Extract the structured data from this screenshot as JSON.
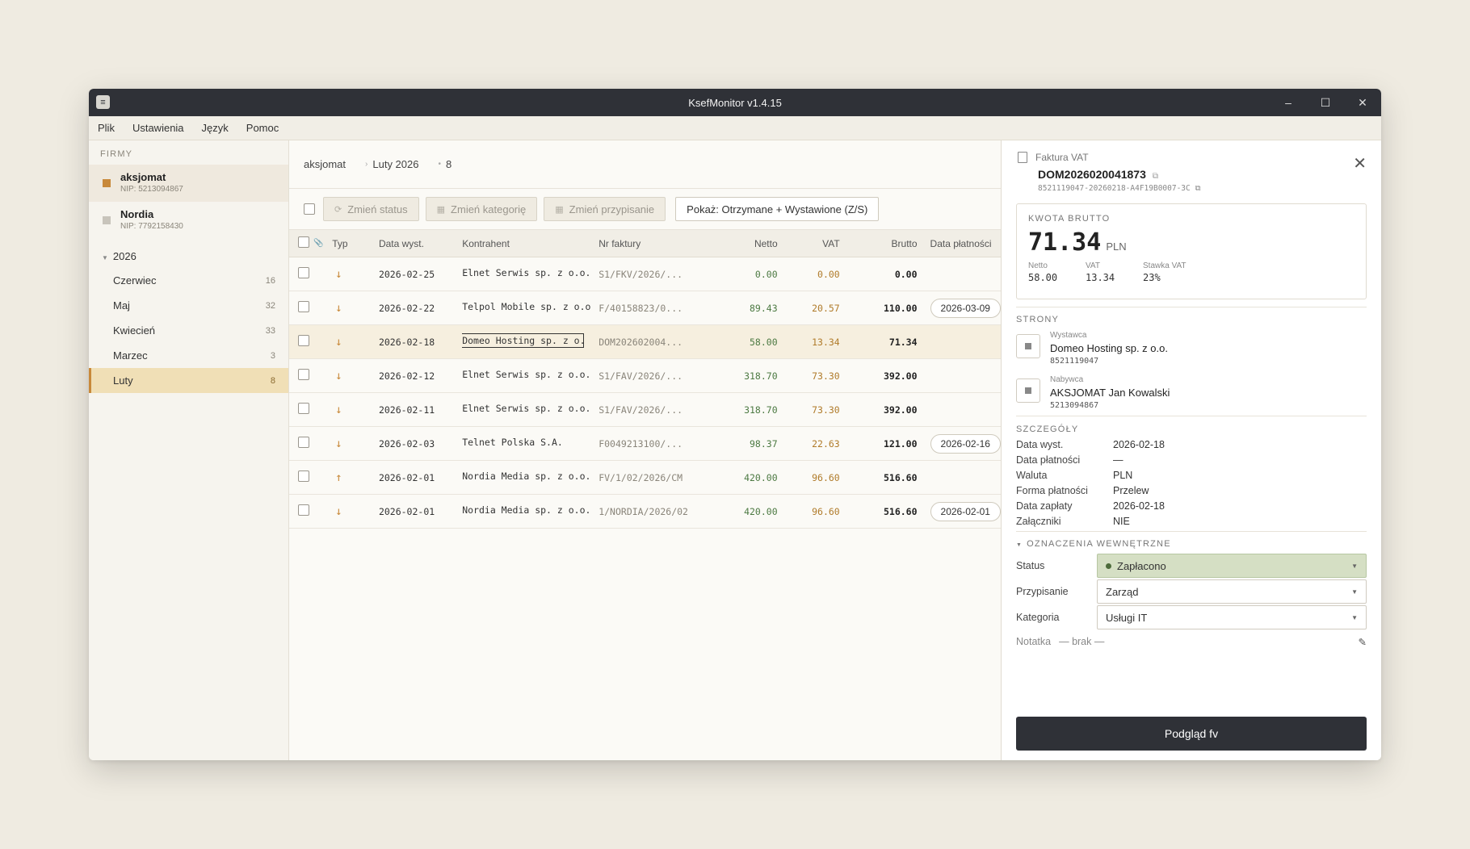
{
  "window": {
    "title": "KsefMonitor  v1.4.15"
  },
  "menu": [
    "Plik",
    "Ustawienia",
    "Język",
    "Pomoc"
  ],
  "sidebar": {
    "section_title": "FIRMY",
    "firms": [
      {
        "name": "aksjomat",
        "nip": "NIP: 5213094867"
      },
      {
        "name": "Nordia",
        "nip": "NIP: 7792158430"
      }
    ],
    "year": "2026",
    "months": [
      {
        "label": "Czerwiec",
        "count": "16"
      },
      {
        "label": "Maj",
        "count": "32"
      },
      {
        "label": "Kwiecień",
        "count": "33"
      },
      {
        "label": "Marzec",
        "count": "3"
      },
      {
        "label": "Luty",
        "count": "8"
      }
    ]
  },
  "breadcrumb": {
    "company": "aksjomat",
    "period": "Luty 2026",
    "count": "8"
  },
  "toolbar": {
    "change_status": "Zmień status",
    "change_category": "Zmień kategorię",
    "change_assignment": "Zmień przypisanie",
    "filter": "Pokaż: Otrzymane + Wystawione (Z/S)"
  },
  "table": {
    "headers": {
      "attach": "📎",
      "typ": "Typ",
      "date": "Data wyst.",
      "contractor": "Kontrahent",
      "invoice": "Nr faktury",
      "net": "Netto",
      "vat": "VAT",
      "gross": "Brutto",
      "paydate": "Data płatności"
    },
    "rows": [
      {
        "typ": "↓",
        "date": "2026-02-25",
        "contractor": "Elnet Serwis sp. z o.o.",
        "invoice": "S1/FKV/2026/...",
        "net": "0.00",
        "vat": "0.00",
        "gross": "0.00",
        "paydate": ""
      },
      {
        "typ": "↓",
        "date": "2026-02-22",
        "contractor": "Telpol Mobile sp. z o.o.",
        "invoice": "F/40158823/0...",
        "net": "89.43",
        "vat": "20.57",
        "gross": "110.00",
        "paydate": "2026-03-09"
      },
      {
        "typ": "↓",
        "date": "2026-02-18",
        "contractor": "Domeo Hosting sp. z o.o.",
        "invoice": "DOM202602004...",
        "net": "58.00",
        "vat": "13.34",
        "gross": "71.34",
        "paydate": ""
      },
      {
        "typ": "↓",
        "date": "2026-02-12",
        "contractor": "Elnet Serwis sp. z o.o.",
        "invoice": "S1/FAV/2026/...",
        "net": "318.70",
        "vat": "73.30",
        "gross": "392.00",
        "paydate": ""
      },
      {
        "typ": "↓",
        "date": "2026-02-11",
        "contractor": "Elnet Serwis sp. z o.o.",
        "invoice": "S1/FAV/2026/...",
        "net": "318.70",
        "vat": "73.30",
        "gross": "392.00",
        "paydate": ""
      },
      {
        "typ": "↓",
        "date": "2026-02-03",
        "contractor": "Telnet Polska S.A.",
        "invoice": "F0049213100/...",
        "net": "98.37",
        "vat": "22.63",
        "gross": "121.00",
        "paydate": "2026-02-16"
      },
      {
        "typ": "↑",
        "date": "2026-02-01",
        "contractor": "Nordia Media sp. z o.o.",
        "invoice": "FV/1/02/2026/CM",
        "net": "420.00",
        "vat": "96.60",
        "gross": "516.60",
        "paydate": ""
      },
      {
        "typ": "↓",
        "date": "2026-02-01",
        "contractor": "Nordia Media sp. z o.o.",
        "invoice": "1/NORDIA/2026/02",
        "net": "420.00",
        "vat": "96.60",
        "gross": "516.60",
        "paydate": "2026-02-01"
      }
    ]
  },
  "detail": {
    "doc_type": "Faktura VAT",
    "number": "DOM2026020041873",
    "ksef": "8521119047-20260218-A4F19B0007-3C",
    "gross_label": "KWOTA BRUTTO",
    "gross": "71.34",
    "currency": "PLN",
    "net_label": "Netto",
    "net": "58.00",
    "vat_label": "VAT",
    "vat": "13.34",
    "rate_label": "Stawka VAT",
    "rate": "23%",
    "parties_title": "STRONY",
    "seller": {
      "role": "Wystawca",
      "name": "Domeo Hosting sp. z o.o.",
      "nip": "8521119047"
    },
    "buyer": {
      "role": "Nabywca",
      "name": "AKSJOMAT Jan Kowalski",
      "nip": "5213094867"
    },
    "details_title": "SZCZEGÓŁY",
    "fields": [
      {
        "k": "Data wyst.",
        "v": "2026-02-18"
      },
      {
        "k": "Data płatności",
        "v": "—"
      },
      {
        "k": "Waluta",
        "v": "PLN"
      },
      {
        "k": "Forma płatności",
        "v": "Przelew"
      },
      {
        "k": "Data zapłaty",
        "v": "2026-02-18"
      },
      {
        "k": "Załączniki",
        "v": "NIE"
      }
    ],
    "internal_title": "OZNACZENIA WEWNĘTRZNE",
    "status_label": "Status",
    "status": "Zapłacono",
    "assign_label": "Przypisanie",
    "assign": "Zarząd",
    "category_label": "Kategoria",
    "category": "Usługi IT",
    "note_label": "Notatka",
    "note": "— brak —",
    "preview_button": "Podgląd fv"
  }
}
